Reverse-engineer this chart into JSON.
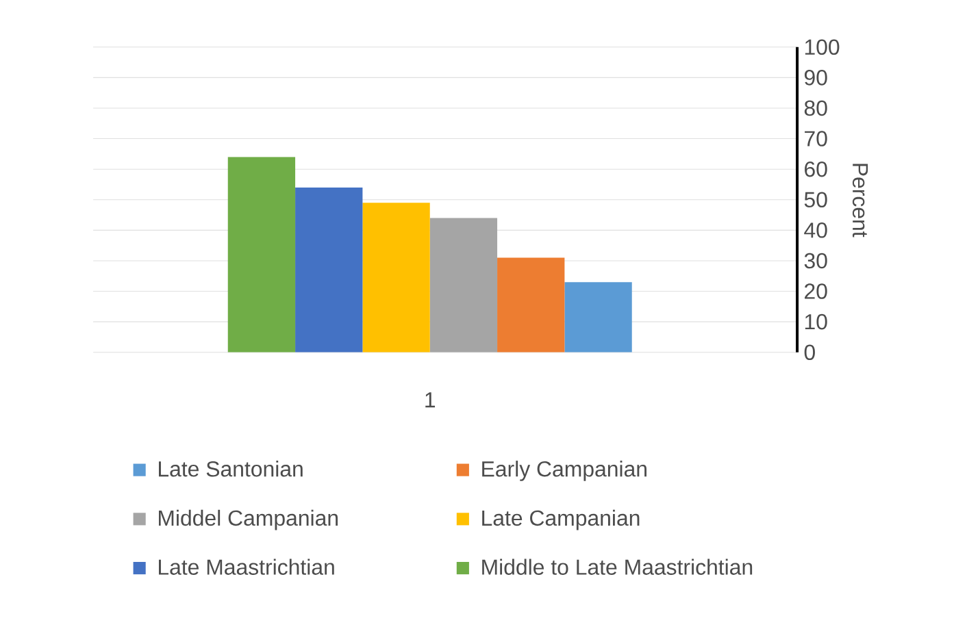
{
  "chart_data": {
    "type": "bar",
    "categories": [
      "1"
    ],
    "ylabel": "Percent",
    "ylim": [
      0,
      100
    ],
    "yticks": [
      0,
      10,
      20,
      30,
      40,
      50,
      60,
      70,
      80,
      90,
      100
    ],
    "grid": "y",
    "legend": "bottom",
    "series": [
      {
        "name": "Late Santonian",
        "color": "#5b9bd5",
        "values": [
          23
        ]
      },
      {
        "name": "Early Campanian",
        "color": "#ed7d31",
        "values": [
          31
        ]
      },
      {
        "name": "Middel Campanian",
        "color": "#a5a5a5",
        "values": [
          44
        ]
      },
      {
        "name": "Late Campanian",
        "color": "#ffc000",
        "values": [
          49
        ]
      },
      {
        "name": "Late Maastrichtian",
        "color": "#4472c4",
        "values": [
          54
        ]
      },
      {
        "name": "Middle to Late Maastrichtian",
        "color": "#70ad47",
        "values": [
          64
        ]
      }
    ]
  }
}
